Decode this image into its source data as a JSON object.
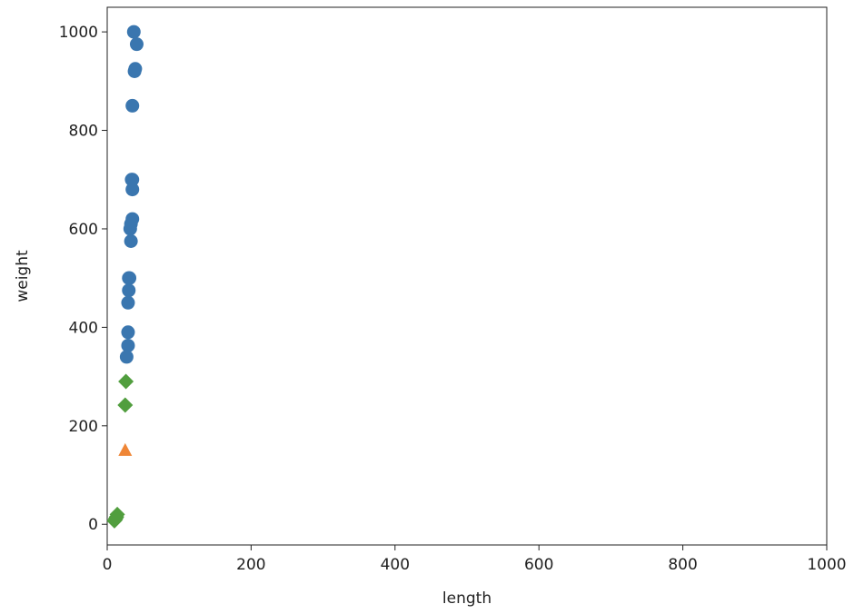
{
  "chart_data": {
    "type": "scatter",
    "xlabel": "length",
    "ylabel": "weight",
    "xlim": [
      0,
      1000
    ],
    "ylim": [
      -42,
      1050
    ],
    "xticks": [
      0,
      200,
      400,
      600,
      800,
      1000
    ],
    "yticks": [
      0,
      200,
      400,
      600,
      800,
      1000
    ],
    "series": [
      {
        "color": "#3a76af",
        "marker": "circle",
        "x": [
          37,
          41,
          39,
          38,
          35,
          34,
          35,
          35,
          35,
          33,
          32,
          33,
          31,
          30,
          30,
          29,
          29,
          29,
          27
        ],
        "values": [
          1000,
          975,
          925,
          920,
          850,
          700,
          700,
          680,
          620,
          610,
          600,
          575,
          500,
          500,
          475,
          450,
          390,
          363,
          340
        ]
      },
      {
        "color": "#ef8636",
        "marker": "triangle",
        "x": [
          25
        ],
        "values": [
          150
        ]
      },
      {
        "color": "#519e3e",
        "marker": "diamond",
        "x": [
          26,
          25,
          14,
          13,
          12,
          11,
          10
        ],
        "values": [
          290,
          242,
          20,
          15,
          12,
          9,
          7
        ]
      }
    ]
  }
}
